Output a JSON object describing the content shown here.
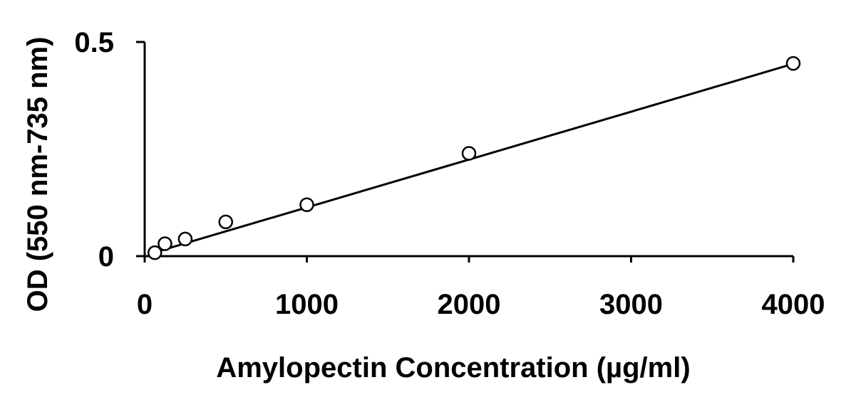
{
  "chart_data": {
    "type": "scatter",
    "title": "",
    "xlabel": "Amylopectin Concentration (µg/ml)",
    "ylabel": "OD (550 nm-735 nm)",
    "xlim": [
      0,
      4000
    ],
    "ylim": [
      0,
      0.5
    ],
    "x_ticks": [
      0,
      1000,
      2000,
      3000,
      4000
    ],
    "x_tick_labels": [
      "0",
      "1000",
      "2000",
      "3000",
      "4000"
    ],
    "y_ticks": [
      0,
      0.5
    ],
    "y_tick_labels": [
      "0",
      "0.5"
    ],
    "grid": false,
    "legend": "none",
    "series": [
      {
        "marker": "open-circle",
        "x": [
          62.5,
          125,
          250,
          500,
          1000,
          2000,
          4000
        ],
        "y": [
          0.008,
          0.029,
          0.04,
          0.08,
          0.12,
          0.24,
          0.45
        ]
      }
    ],
    "fit_line": {
      "x": [
        62.5,
        4000
      ],
      "y": [
        0.009,
        0.449
      ]
    }
  }
}
